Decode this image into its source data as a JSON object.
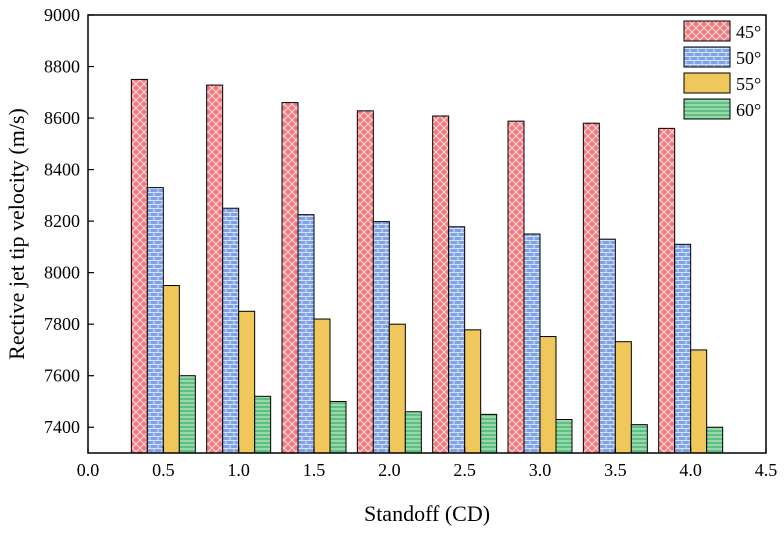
{
  "chart_data": {
    "type": "bar",
    "title": "",
    "xlabel": "Standoff (CD)",
    "ylabel": "Rective jet tip velocity (m/s)",
    "x": [
      0.5,
      1.0,
      1.5,
      2.0,
      2.5,
      3.0,
      3.5,
      4.0
    ],
    "xlim": [
      0.0,
      4.5
    ],
    "ylim": [
      7300,
      9000
    ],
    "x_ticks": [
      "0.0",
      "0.5",
      "1.0",
      "1.5",
      "2.0",
      "2.5",
      "3.0",
      "3.5",
      "4.0",
      "4.5"
    ],
    "x_tick_values": [
      0.0,
      0.5,
      1.0,
      1.5,
      2.0,
      2.5,
      3.0,
      3.5,
      4.0,
      4.5
    ],
    "y_ticks": [
      "7400",
      "7600",
      "7800",
      "8000",
      "8200",
      "8400",
      "8600",
      "8800",
      "9000"
    ],
    "y_tick_values": [
      7400,
      7600,
      7800,
      8000,
      8200,
      8400,
      8600,
      8800,
      9000
    ],
    "grid": false,
    "legend_position": "top-right",
    "series": [
      {
        "name": "45°",
        "color": "#f07a7e",
        "pattern": "diagonal-hatch",
        "values": [
          8750,
          8728,
          8660,
          8628,
          8608,
          8588,
          8580,
          8560
        ]
      },
      {
        "name": "50°",
        "color": "#7fa1e6",
        "pattern": "brick",
        "values": [
          8330,
          8250,
          8225,
          8198,
          8178,
          8150,
          8130,
          8110
        ]
      },
      {
        "name": "55°",
        "color": "#efc75a",
        "pattern": "none",
        "values": [
          7950,
          7850,
          7820,
          7800,
          7778,
          7752,
          7732,
          7700
        ]
      },
      {
        "name": "60°",
        "color": "#5dc07f",
        "pattern": "horizontal-lines",
        "values": [
          7600,
          7520,
          7500,
          7460,
          7450,
          7430,
          7410,
          7400
        ]
      }
    ]
  }
}
